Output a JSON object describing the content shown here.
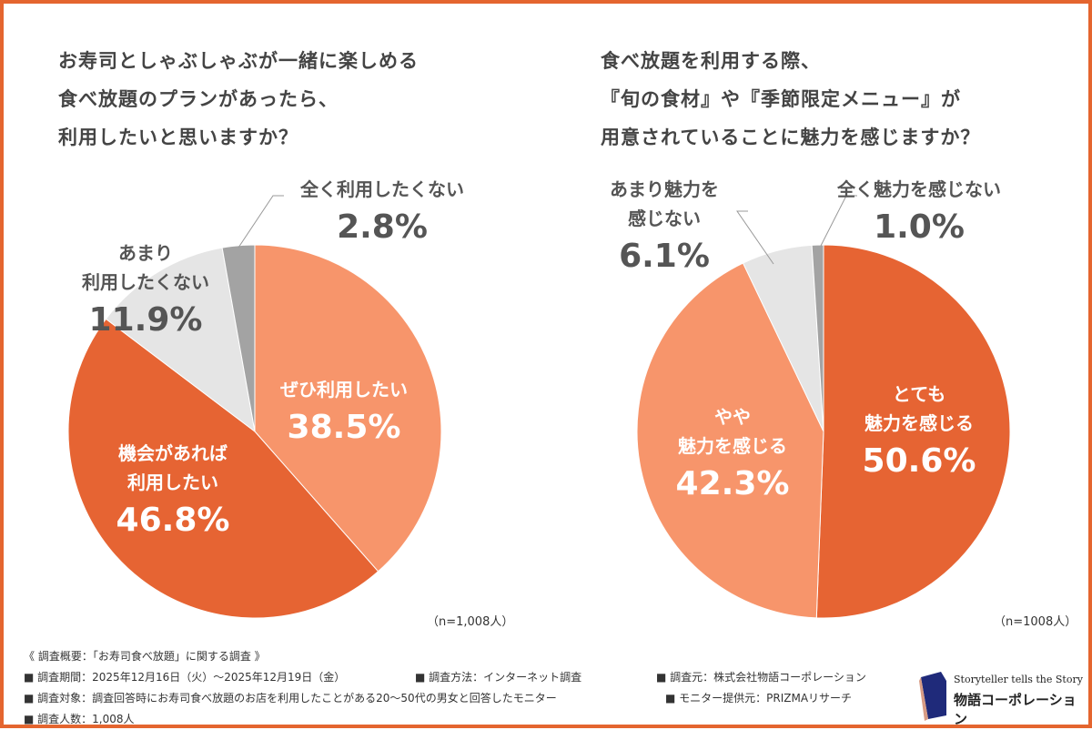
{
  "colors": {
    "border": "#E4652F",
    "dark_orange": "#E66433",
    "light_orange": "#F7956B",
    "light_gray": "#E5E5E5",
    "gray": "#A3A3A3",
    "label_dark": "#555555"
  },
  "chart_data": [
    {
      "type": "pie",
      "title_lines": [
        "お寿司としゃぶしゃぶが一緒に楽しめる",
        "食べ放題のプランがあったら、",
        "利用したいと思いますか？"
      ],
      "note": "（n=1,008人）",
      "start": "top",
      "direction": "clockwise",
      "slices": [
        {
          "label_lines": [
            "ぜひ利用したい"
          ],
          "value": 38.5,
          "value_text": "38.5%",
          "color": "#F7956B",
          "text_color": "#ffffff"
        },
        {
          "label_lines": [
            "機会があれば",
            "利用したい"
          ],
          "value": 46.8,
          "value_text": "46.8%",
          "color": "#E66433",
          "text_color": "#ffffff"
        },
        {
          "label_lines": [
            "あまり",
            "利用したくない"
          ],
          "value": 11.9,
          "value_text": "11.9%",
          "color": "#E5E5E5",
          "text_color": "#555555"
        },
        {
          "label_lines": [
            "全く利用したくない"
          ],
          "value": 2.8,
          "value_text": "2.8%",
          "color": "#A3A3A3",
          "text_color": "#555555"
        }
      ]
    },
    {
      "type": "pie",
      "title_lines": [
        "食べ放題を利用する際、",
        "『旬の食材』や『季節限定メニュー』が",
        "用意されていることに魅力を感じますか？"
      ],
      "note": "（n=1008人）",
      "start": "top",
      "direction": "clockwise",
      "slices": [
        {
          "label_lines": [
            "とても",
            "魅力を感じる"
          ],
          "value": 50.6,
          "value_text": "50.6%",
          "color": "#E66433",
          "text_color": "#ffffff"
        },
        {
          "label_lines": [
            "やや",
            "魅力を感じる"
          ],
          "value": 42.3,
          "value_text": "42.3%",
          "color": "#F7956B",
          "text_color": "#ffffff"
        },
        {
          "label_lines": [
            "あまり魅力を",
            "感じない"
          ],
          "value": 6.1,
          "value_text": "6.1%",
          "color": "#E5E5E5",
          "text_color": "#555555"
        },
        {
          "label_lines": [
            "全く魅力を感じない"
          ],
          "value": 1.0,
          "value_text": "1.0%",
          "color": "#A3A3A3",
          "text_color": "#555555"
        }
      ]
    }
  ],
  "footer": {
    "heading": "《 調査概要：「お寿司食べ放題」に関する調査 》",
    "period": "■ 調査期間：2025年12月16日（火）～2025年12月19日（金）",
    "method": "■ 調査方法：インターネット調査",
    "source": "■ 調査元：株式会社物語コーポレーション",
    "target": "■ 調査対象：調査回答時にお寿司食べ放題のお店を利用したことがある20～50代の男女と回答したモニター",
    "provider": "■ モニター提供元：PRIZMAリサーチ",
    "count": "■ 調査人数：1,008人"
  },
  "logo": {
    "tagline": "Storyteller tells the Story",
    "name": "物語コーポレーション"
  }
}
